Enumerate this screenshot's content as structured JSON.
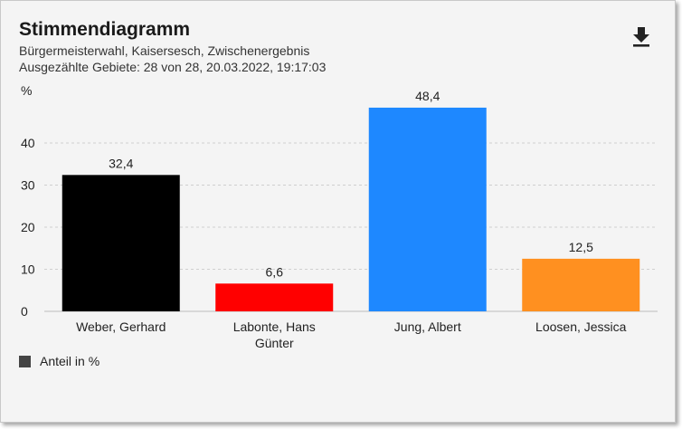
{
  "header": {
    "title": "Stimmendiagramm",
    "subtitle": "Bürgermeisterwahl, Kaisersesch, Zwischenergebnis",
    "subtitle2": "Ausgezählte Gebiete: 28 von 28, 20.03.2022, 19:17:03",
    "download_icon": "download-icon"
  },
  "chart_data": {
    "type": "bar",
    "title": "Stimmendiagramm",
    "ylabel": "%",
    "xlabel": "",
    "ylim": [
      0,
      50
    ],
    "yticks": [
      "0",
      "10",
      "20",
      "30",
      "40"
    ],
    "grid": true,
    "categories": [
      "Weber, Gerhard",
      "Labonte, Hans Günter",
      "Jung, Albert",
      "Loosen, Jessica"
    ],
    "category_lines": [
      [
        "Weber, Gerhard"
      ],
      [
        "Labonte, Hans",
        "Günter"
      ],
      [
        "Jung, Albert"
      ],
      [
        "Loosen, Jessica"
      ]
    ],
    "values": [
      32.4,
      6.6,
      48.4,
      12.5
    ],
    "value_labels": [
      "32,4",
      "6,6",
      "48,4",
      "12,5"
    ],
    "colors": [
      "#000000",
      "#ff0000",
      "#1e88ff",
      "#ff9020"
    ],
    "legend": [
      {
        "label": "Anteil in %",
        "color": "#444444"
      }
    ]
  }
}
